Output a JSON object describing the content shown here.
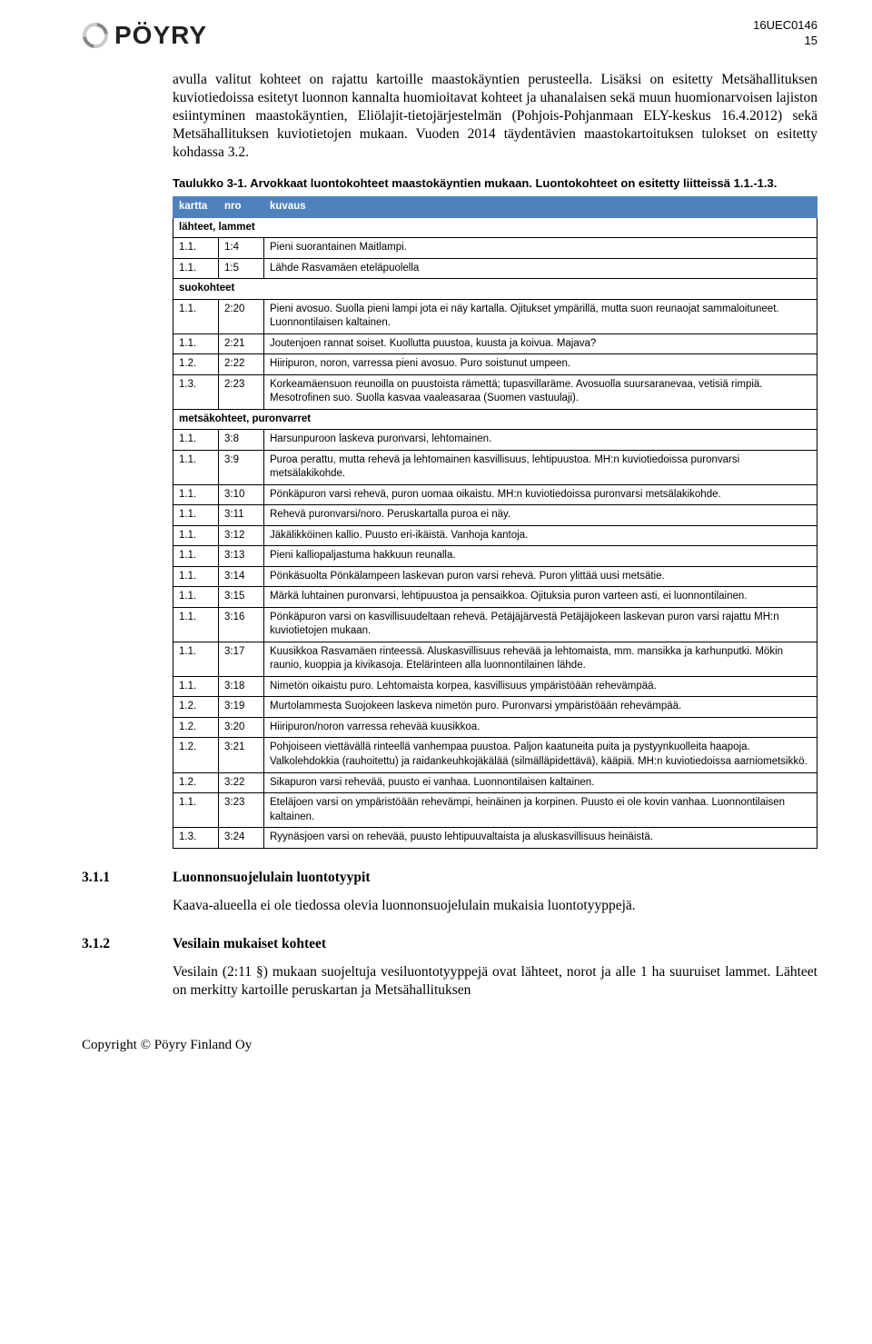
{
  "header": {
    "logo_text": "PÖYRY",
    "doc_ref": "16UEC0146",
    "page_num": "15"
  },
  "para1": "avulla valitut kohteet on rajattu kartoille maastokäyntien perusteella. Lisäksi on esitetty Metsähallituksen kuviotiedoissa esitetyt luonnon kannalta huomioitavat kohteet ja uhanalaisen sekä muun huomionarvoisen lajiston esiintyminen maastokäyntien, Eliölajit-tietojärjestelmän (Pohjois-Pohjanmaan ELY-keskus 16.4.2012) sekä Metsähallituksen kuviotietojen mukaan. Vuoden 2014 täydentävien maastokartoituksen tulokset on esitetty kohdassa 3.2.",
  "table_caption": "Taulukko 3-1. Arvokkaat luontokohteet maastokäyntien mukaan. Luontokohteet on esitetty liitteissä 1.1.-1.3.",
  "table": {
    "header_bg": "#4f81bd",
    "header_color": "#ffffff",
    "border_color": "#000000",
    "columns": [
      "kartta",
      "nro",
      "kuvaus"
    ],
    "sections": [
      {
        "title": "lähteet, lammet",
        "rows": [
          [
            "1.1.",
            "1:4",
            "Pieni suorantainen Maitlampi."
          ],
          [
            "1.1.",
            "1:5",
            "Lähde Rasvamäen eteläpuolella"
          ]
        ]
      },
      {
        "title": "suokohteet",
        "rows": [
          [
            "1.1.",
            "2:20",
            "Pieni avosuo. Suolla pieni lampi jota ei näy kartalla. Ojitukset ympärillä, mutta suon reunaojat sammaloituneet. Luonnontilaisen kaltainen."
          ],
          [
            "1.1.",
            "2:21",
            "Joutenjoen rannat soiset. Kuollutta puustoa, kuusta ja koivua. Majava?"
          ],
          [
            "1.2.",
            "2:22",
            "Hiiripuron, noron, varressa pieni avosuo. Puro soistunut umpeen."
          ],
          [
            "1.3.",
            "2:23",
            "Korkeamäensuon reunoilla on puustoista rämettä; tupasvillaräme. Avosuolla suursaranevaa, vetisiä rimpiä. Mesotrofinen suo. Suolla kasvaa vaaleasaraa (Suomen vastuulaji)."
          ]
        ]
      },
      {
        "title": "metsäkohteet, puronvarret",
        "rows": [
          [
            "1.1.",
            "3:8",
            "Harsunpuroon laskeva puronvarsi, lehtomainen."
          ],
          [
            "1.1.",
            "3:9",
            "Puroa perattu, mutta rehevä ja lehtomainen kasvillisuus, lehtipuustoa. MH:n kuviotiedoissa puronvarsi metsälakikohde."
          ],
          [
            "1.1.",
            "3:10",
            "Pönkäpuron varsi rehevä, puron uomaa oikaistu. MH:n kuviotiedoissa puronvarsi metsälakikohde."
          ],
          [
            "1.1.",
            "3:11",
            "Rehevä puronvarsi/noro. Peruskartalla puroa ei näy."
          ],
          [
            "1.1.",
            "3:12",
            "Jäkälikköinen kallio. Puusto eri-ikäistä. Vanhoja kantoja."
          ],
          [
            "1.1.",
            "3:13",
            "Pieni kalliopaljastuma hakkuun reunalla."
          ],
          [
            "1.1.",
            "3:14",
            "Pönkäsuolta Pönkälampeen laskevan puron varsi rehevä. Puron ylittää uusi metsätie."
          ],
          [
            "1.1.",
            "3:15",
            "Märkä luhtainen puronvarsi, lehtipuustoa ja pensaikkoa. Ojituksia puron varteen asti, ei luonnontilainen."
          ],
          [
            "1.1.",
            "3:16",
            "Pönkäpuron varsi on kasvillisuudeltaan rehevä. Petäjäjärvestä Petäjäjokeen laskevan puron varsi rajattu MH:n kuviotietojen mukaan."
          ],
          [
            "1.1.",
            "3:17",
            "Kuusikkoa Rasvamäen rinteessä. Aluskasvillisuus rehevää ja lehtomaista, mm. mansikka ja karhunputki. Mökin raunio, kuoppia ja kivikasoja. Etelärinteen alla luonnontilainen lähde."
          ],
          [
            "1.1.",
            "3:18",
            "Nimetön oikaistu puro. Lehtomaista korpea, kasvillisuus ympäristöään rehevämpää."
          ],
          [
            "1.2.",
            "3:19",
            "Murtolammesta Suojokeen laskeva nimetön puro. Puronvarsi ympäristöään rehevämpää."
          ],
          [
            "1.2.",
            "3:20",
            "Hiiripuron/noron varressa rehevää kuusikkoa."
          ],
          [
            "1.2.",
            "3:21",
            "Pohjoiseen viettävällä rinteellä vanhempaa puustoa. Paljon kaatuneita puita ja pystyynkuolleita haapoja. Valkolehdokkia (rauhoitettu) ja raidankeuhkojäkälää (silmälläpidettävä), kääpiä. MH:n kuviotiedoissa aarniometsikkö."
          ],
          [
            "1.2.",
            "3:22",
            "Sikapuron varsi rehevää, puusto ei vanhaa. Luonnontilaisen kaltainen."
          ],
          [
            "1.1.",
            "3:23",
            "Eteläjoen varsi on ympäristöään rehevämpi, heinäinen ja korpinen. Puusto ei ole kovin vanhaa. Luonnontilaisen kaltainen."
          ],
          [
            "1.3.",
            "3:24",
            "Ryynäsjoen varsi on rehevää, puusto lehtipuuvaltaista ja aluskasvillisuus heinäistä."
          ]
        ]
      }
    ]
  },
  "sec311": {
    "num": "3.1.1",
    "title": "Luonnonsuojelulain luontotyypit",
    "body": "Kaava-alueella ei ole tiedossa olevia luonnonsuojelulain mukaisia luontotyyppejä."
  },
  "sec312": {
    "num": "3.1.2",
    "title": "Vesilain mukaiset kohteet",
    "body": "Vesilain (2:11 §) mukaan suojeltuja vesiluontotyyppejä ovat lähteet, norot ja alle 1 ha suuruiset lammet. Lähteet on merkitty kartoille peruskartan ja Metsähallituksen"
  },
  "footer": "Copyright © Pöyry Finland Oy"
}
